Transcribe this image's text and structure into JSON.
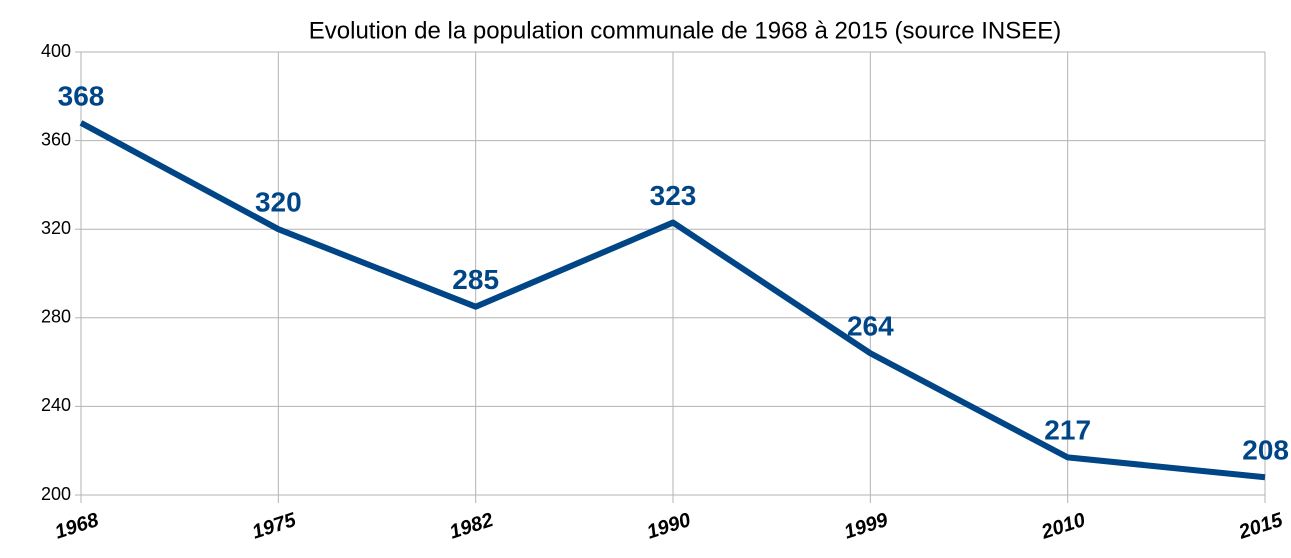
{
  "chart_data": {
    "type": "line",
    "title": "Evolution de la population communale de 1968 à 2015 (source INSEE)",
    "categories": [
      "1968",
      "1975",
      "1982",
      "1990",
      "1999",
      "2010",
      "2015"
    ],
    "values": [
      368,
      320,
      285,
      323,
      264,
      217,
      208
    ],
    "color": "#004586",
    "ylim": [
      200,
      400
    ],
    "yticks": [
      200,
      240,
      280,
      320,
      360,
      400
    ],
    "grid": true
  }
}
